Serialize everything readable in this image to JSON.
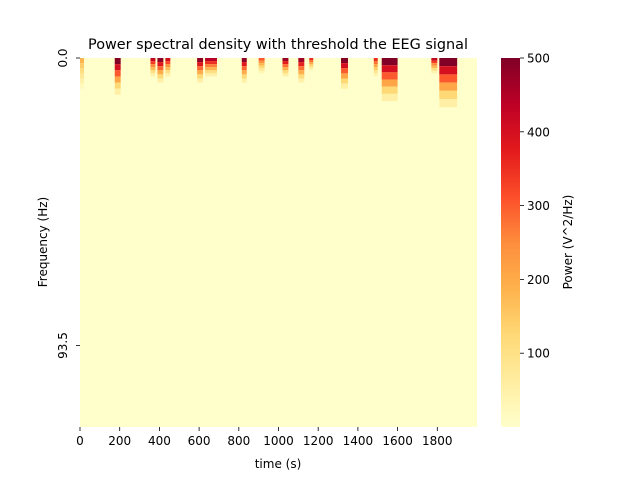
{
  "chart_data": {
    "type": "heatmap",
    "title": "Power spectral density with threshold the EEG signal",
    "xlabel": "time (s)",
    "ylabel": "Frequency (Hz)",
    "xlim": [
      0,
      2000
    ],
    "x_ticks": [
      0,
      200,
      400,
      600,
      800,
      1000,
      1200,
      1400,
      1600,
      1800
    ],
    "y_tick_labels": [
      "0.0",
      "93.5"
    ],
    "y_tick_values": [
      0,
      93.5
    ],
    "ylim": [
      0,
      120
    ],
    "colorbar": {
      "label": "Power (V^2/Hz)",
      "range": [
        0,
        500
      ],
      "ticks": [
        100,
        200,
        300,
        400,
        500
      ],
      "colormap": "YlOrRd",
      "colors": [
        "#ffffcc",
        "#ffeda0",
        "#fed976",
        "#feb24c",
        "#fd8d3c",
        "#fc4e2a",
        "#e31a1c",
        "#bd0026",
        "#800026"
      ]
    },
    "background_power": 5,
    "bursts": [
      {
        "time_start": 0,
        "time_end": 20,
        "freq_max": 10,
        "power": 180
      },
      {
        "time_start": 175,
        "time_end": 205,
        "freq_max": 12,
        "power": 500
      },
      {
        "time_start": 355,
        "time_end": 380,
        "freq_max": 6,
        "power": 420
      },
      {
        "time_start": 390,
        "time_end": 420,
        "freq_max": 8,
        "power": 480
      },
      {
        "time_start": 430,
        "time_end": 455,
        "freq_max": 6,
        "power": 400
      },
      {
        "time_start": 590,
        "time_end": 620,
        "freq_max": 8,
        "power": 480
      },
      {
        "time_start": 630,
        "time_end": 690,
        "freq_max": 6,
        "power": 440
      },
      {
        "time_start": 815,
        "time_end": 840,
        "freq_max": 8,
        "power": 480
      },
      {
        "time_start": 900,
        "time_end": 930,
        "freq_max": 5,
        "power": 300
      },
      {
        "time_start": 1020,
        "time_end": 1050,
        "freq_max": 6,
        "power": 470
      },
      {
        "time_start": 1100,
        "time_end": 1130,
        "freq_max": 8,
        "power": 460
      },
      {
        "time_start": 1155,
        "time_end": 1175,
        "freq_max": 4,
        "power": 350
      },
      {
        "time_start": 1315,
        "time_end": 1350,
        "freq_max": 10,
        "power": 500
      },
      {
        "time_start": 1480,
        "time_end": 1500,
        "freq_max": 6,
        "power": 350
      },
      {
        "time_start": 1520,
        "time_end": 1600,
        "freq_max": 14,
        "power": 500
      },
      {
        "time_start": 1770,
        "time_end": 1800,
        "freq_max": 5,
        "power": 420
      },
      {
        "time_start": 1810,
        "time_end": 1900,
        "freq_max": 16,
        "power": 500
      }
    ]
  }
}
